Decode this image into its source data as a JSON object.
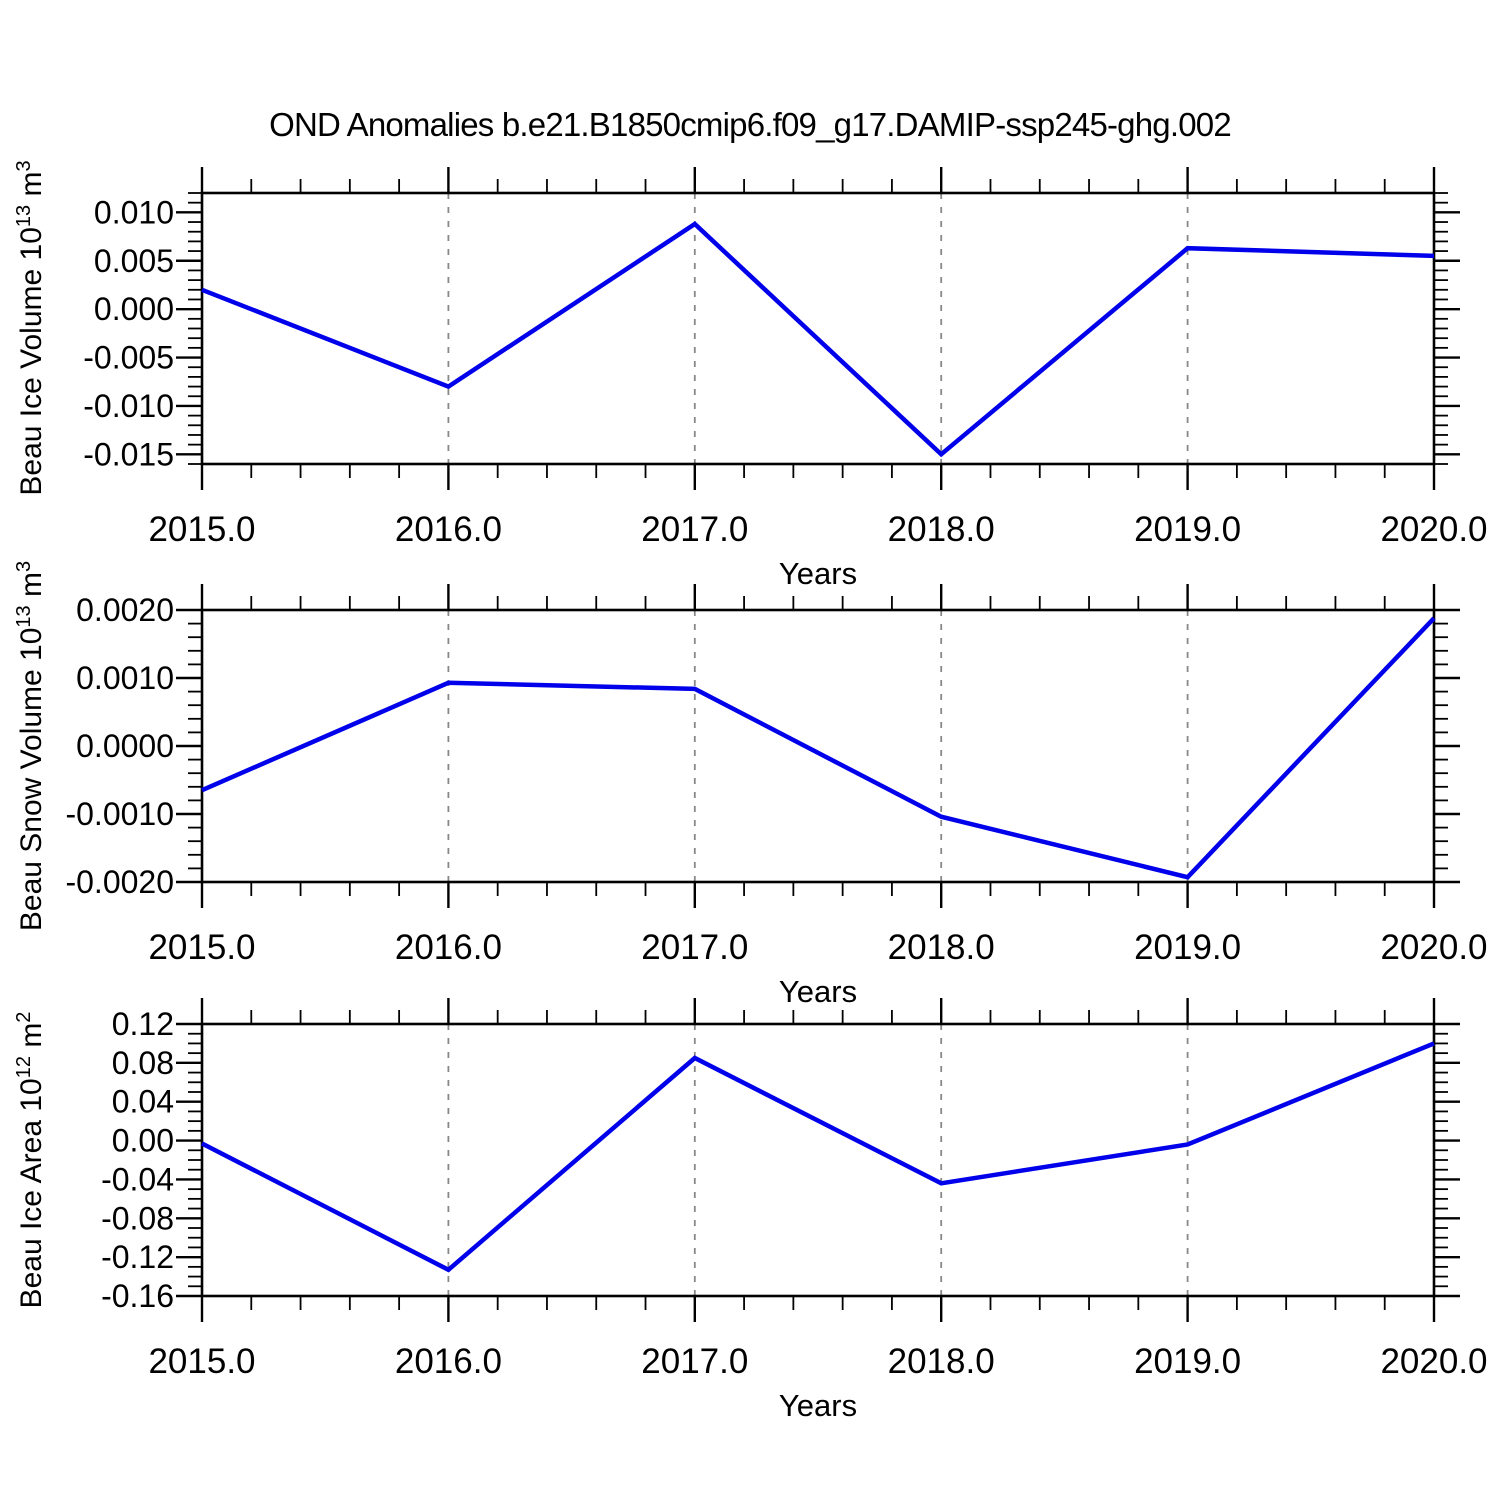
{
  "chart_data": {
    "type": "line",
    "title": "OND Anomalies b.e21.B1850cmip6.f09_g17.DAMIP-ssp245-ghg.002",
    "xlabel": "Years",
    "x": [
      2015,
      2016,
      2017,
      2018,
      2019,
      2020
    ],
    "x_tick_labels": [
      "2015.0",
      "2016.0",
      "2017.0",
      "2018.0",
      "2019.0",
      "2020.0"
    ],
    "x_minor_step": 0.2,
    "xlim": [
      2015,
      2020
    ],
    "grid_vertical_dashed_at": [
      2016,
      2017,
      2018,
      2019
    ],
    "legend": "none",
    "line_color": "#0000EB",
    "grid_color": "#888888",
    "axis_color": "#000000",
    "panels": [
      {
        "name": "beau-ice-volume",
        "ylabel": {
          "text1": "Beau Ice Volume 10",
          "sup1": "13",
          "text2": " m",
          "sup2": "3"
        },
        "values": [
          0.002,
          -0.008,
          0.0088,
          -0.015,
          0.0063,
          0.0055
        ],
        "ylim": [
          -0.016,
          0.012
        ],
        "ytick_values": [
          0.01,
          0.005,
          0.0,
          -0.005,
          -0.01,
          -0.015
        ],
        "ytick_labels": [
          "0.010",
          "0.005",
          "0.000",
          "-0.005",
          "-0.010",
          "-0.015"
        ],
        "y_minor_step": 0.001
      },
      {
        "name": "beau-snow-volume",
        "ylabel": {
          "text1": "Beau Snow Volume 10",
          "sup1": "13",
          "text2": " m",
          "sup2": "3"
        },
        "values": [
          -0.00065,
          0.00093,
          0.00084,
          -0.00104,
          -0.00193,
          0.00188
        ],
        "ylim": [
          -0.002,
          0.002
        ],
        "ytick_values": [
          0.002,
          0.001,
          0.0,
          -0.001,
          -0.002
        ],
        "ytick_labels": [
          "0.0020",
          "0.0010",
          "0.0000",
          "-0.0010",
          "-0.0020"
        ],
        "y_minor_step": 0.0002
      },
      {
        "name": "beau-ice-area",
        "ylabel": {
          "text1": "Beau Ice Area 10",
          "sup1": "12",
          "text2": " m",
          "sup2": "2"
        },
        "values": [
          -0.003,
          -0.133,
          0.085,
          -0.044,
          -0.004,
          0.1
        ],
        "ylim": [
          -0.16,
          0.12
        ],
        "ytick_values": [
          0.12,
          0.08,
          0.04,
          0.0,
          -0.04,
          -0.08,
          -0.12,
          -0.16
        ],
        "ytick_labels": [
          "0.12",
          "0.08",
          "0.04",
          "0.00",
          "-0.04",
          "-0.08",
          "-0.12",
          "-0.16"
        ],
        "y_minor_step": 0.01
      }
    ]
  }
}
